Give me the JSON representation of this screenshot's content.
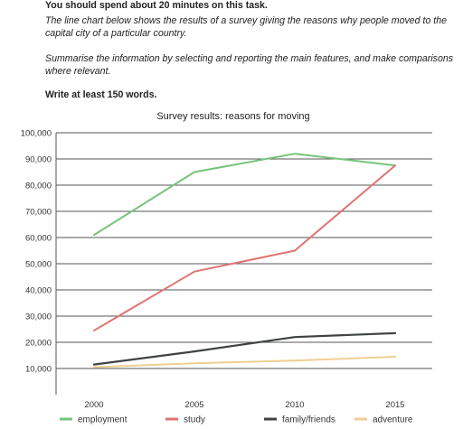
{
  "task": {
    "heading": "You should spend about 20 minutes on this task.",
    "prompt": "The line chart below shows the results of a survey giving the reasons why people moved to the capital city of a particular country.",
    "instruction": "Summarise the information by selecting and reporting the main features, and make comparisons where relevant.",
    "word_count": "Write at least 150 words."
  },
  "chart_data": {
    "type": "line",
    "title": "Survey results: reasons for moving",
    "xlabel": "",
    "ylabel": "",
    "x": [
      "2000",
      "2005",
      "2010",
      "2015"
    ],
    "ylim": [
      0,
      100000
    ],
    "y_ticks": [
      "10,000",
      "20,000",
      "30,000",
      "40,000",
      "50,000",
      "60,000",
      "70,000",
      "80,000",
      "90,000",
      "100,000"
    ],
    "grid": true,
    "legend_position": "bottom",
    "series": [
      {
        "name": "employment",
        "color": "#76c47a",
        "values": [
          61000,
          85000,
          92000,
          87500
        ]
      },
      {
        "name": "study",
        "color": "#e07373",
        "values": [
          24500,
          47000,
          55000,
          87500
        ]
      },
      {
        "name": "family/friends",
        "color": "#3f4442",
        "values": [
          11500,
          16500,
          22000,
          23500
        ]
      },
      {
        "name": "adventure",
        "color": "#efcf92",
        "values": [
          10500,
          12000,
          13000,
          14500
        ]
      }
    ]
  }
}
